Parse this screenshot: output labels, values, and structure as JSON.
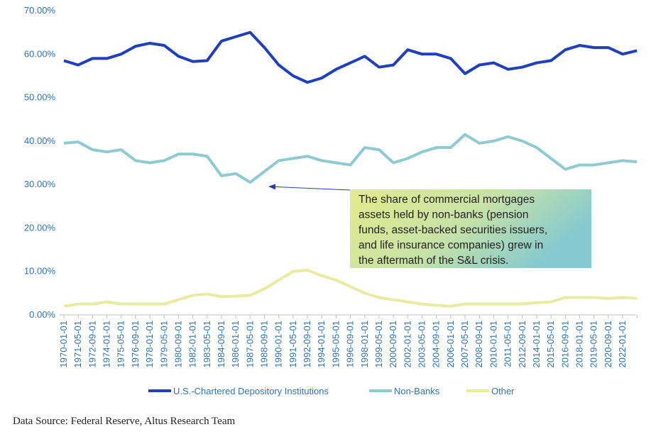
{
  "chart_data": {
    "type": "line",
    "categories": [
      "1970-01-01",
      "1971-05-01",
      "1972-09-01",
      "1974-01-01",
      "1975-05-01",
      "1976-09-01",
      "1978-01-01",
      "1979-05-01",
      "1980-09-01",
      "1982-01-01",
      "1983-05-01",
      "1984-09-01",
      "1986-01-01",
      "1987-05-01",
      "1988-09-01",
      "1990-01-01",
      "1991-05-01",
      "1992-09-01",
      "1994-01-01",
      "1995-05-01",
      "1996-09-01",
      "1998-01-01",
      "1999-05-01",
      "2000-09-01",
      "2002-01-01",
      "2003-05-01",
      "2004-09-01",
      "2006-01-01",
      "2007-05-01",
      "2008-09-01",
      "2010-01-01",
      "2011-05-01",
      "2012-09-01",
      "2014-01-01",
      "2015-05-01",
      "2016-09-01",
      "2018-01-01",
      "2019-05-01",
      "2020-09-01",
      "2022-01-01",
      null
    ],
    "series": [
      {
        "name": "U.S.-Chartered Depository Institutions",
        "color": "#1f3fbf",
        "values": [
          58.5,
          57.5,
          59.0,
          59.0,
          60.0,
          61.8,
          62.5,
          62.0,
          59.5,
          58.3,
          58.5,
          63.0,
          64.0,
          65.0,
          61.5,
          57.5,
          55.0,
          53.5,
          54.5,
          56.5,
          58.0,
          59.5,
          57.0,
          57.5,
          61.0,
          60.0,
          60.0,
          59.0,
          55.5,
          57.5,
          58.0,
          56.5,
          57.0,
          58.0,
          58.5,
          61.0,
          62.0,
          61.5,
          61.5,
          60.0,
          60.8
        ]
      },
      {
        "name": "Non-Banks",
        "color": "#8ecad2",
        "values": [
          39.5,
          39.8,
          38.0,
          37.5,
          38.0,
          35.5,
          35.0,
          35.5,
          37.0,
          37.0,
          36.5,
          32.0,
          32.5,
          30.5,
          33.0,
          35.5,
          36.0,
          36.5,
          35.5,
          35.0,
          34.5,
          38.5,
          38.0,
          35.0,
          36.0,
          37.5,
          38.5,
          38.5,
          41.5,
          39.5,
          40.0,
          41.0,
          40.0,
          38.5,
          36.0,
          33.5,
          34.5,
          34.5,
          35.0,
          35.5,
          35.2
        ]
      },
      {
        "name": "Other",
        "color": "#e9ec9e",
        "values": [
          2.0,
          2.5,
          2.5,
          3.0,
          2.5,
          2.5,
          2.5,
          2.5,
          3.5,
          4.5,
          4.8,
          4.2,
          4.3,
          4.5,
          6.0,
          8.0,
          10.0,
          10.3,
          9.0,
          8.0,
          6.5,
          5.0,
          4.0,
          3.5,
          3.0,
          2.5,
          2.2,
          2.0,
          2.5,
          2.5,
          2.5,
          2.5,
          2.5,
          2.8,
          3.0,
          4.0,
          4.0,
          4.0,
          3.8,
          4.0,
          3.8
        ]
      }
    ],
    "ylim": [
      0,
      70
    ],
    "yticks": [
      {
        "value": 0,
        "label": "0.00%"
      },
      {
        "value": 10,
        "label": "10.00%"
      },
      {
        "value": 20,
        "label": "20.00%"
      },
      {
        "value": 30,
        "label": "30.00%"
      },
      {
        "value": 40,
        "label": "40.00%"
      },
      {
        "value": 50,
        "label": "50.00%"
      },
      {
        "value": 60,
        "label": "60.00%"
      },
      {
        "value": 70,
        "label": "70.00%"
      }
    ],
    "grid": false,
    "legend": "bottom",
    "annotation": [
      "The share of commercial mortgages",
      "assets held by non-banks (pension",
      "funds, asset-backed securities issuers,",
      "and life insurance companies) grew in",
      "the aftermath of the S&L crisis."
    ],
    "source": "Data Source: Federal Reserve, Altus Research Team"
  }
}
